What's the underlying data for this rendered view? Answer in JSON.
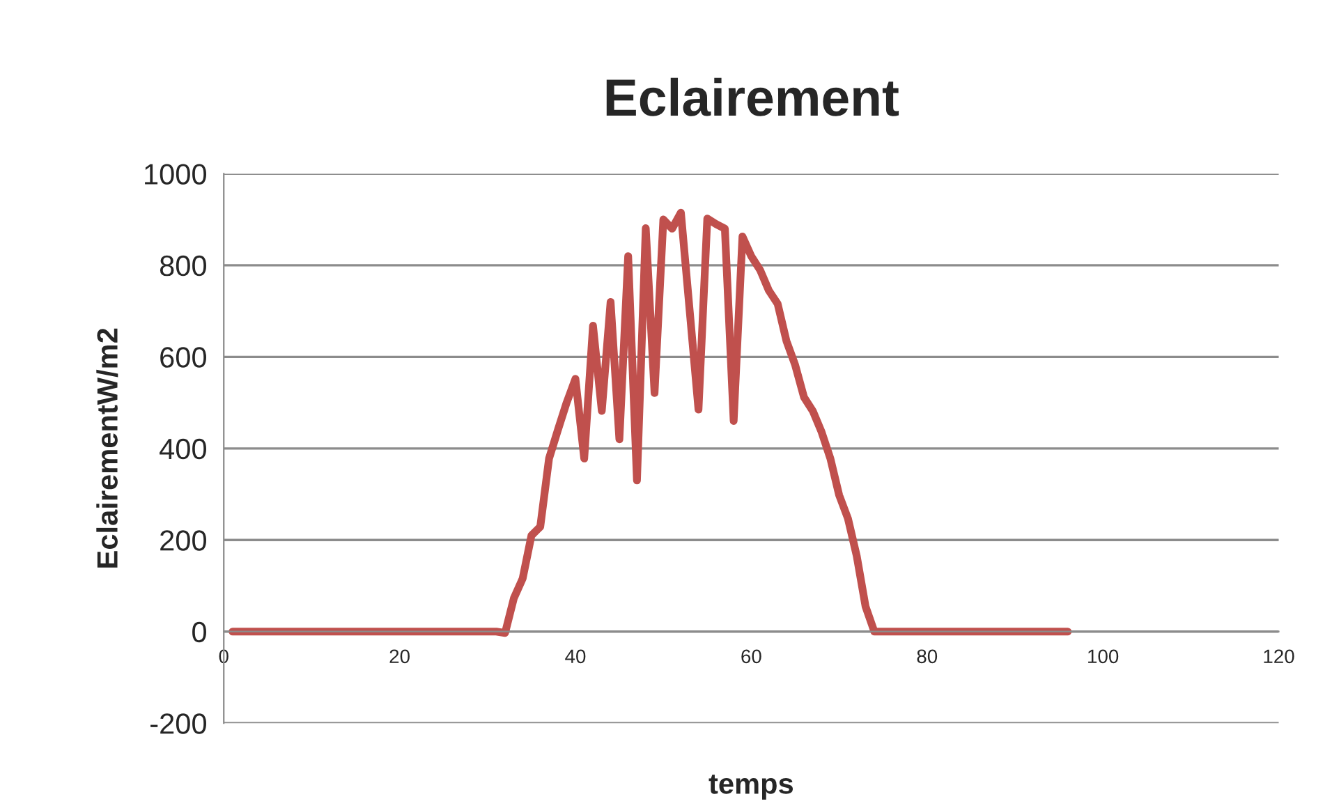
{
  "chart_data": {
    "type": "line",
    "title": "Eclairement",
    "xlabel": "temps",
    "ylabel": "EclairementW/m2",
    "x": [
      1,
      2,
      3,
      4,
      5,
      6,
      7,
      8,
      9,
      10,
      11,
      12,
      13,
      14,
      15,
      16,
      17,
      18,
      19,
      20,
      21,
      22,
      23,
      24,
      25,
      26,
      27,
      28,
      29,
      30,
      31,
      32,
      33,
      34,
      35,
      36,
      37,
      38,
      39,
      40,
      41,
      42,
      43,
      44,
      45,
      46,
      47,
      48,
      49,
      50,
      51,
      52,
      53,
      54,
      55,
      56,
      57,
      58,
      59,
      60,
      61,
      62,
      63,
      64,
      65,
      66,
      67,
      68,
      69,
      70,
      71,
      72,
      73,
      74,
      75,
      76,
      77,
      78,
      79,
      80,
      81,
      82,
      83,
      84,
      85,
      86,
      87,
      88,
      89,
      90,
      91,
      92,
      93,
      94,
      95,
      96
    ],
    "series": [
      {
        "color": "#c0504d",
        "values": [
          0,
          0,
          0,
          0,
          0,
          0,
          0,
          0,
          0,
          0,
          0,
          0,
          0,
          0,
          0,
          0,
          0,
          0,
          0,
          0,
          0,
          0,
          0,
          0,
          0,
          0,
          0,
          0,
          0,
          0,
          0,
          -3,
          73,
          116,
          210,
          229,
          378,
          440,
          500,
          552,
          378,
          668,
          482,
          720,
          420,
          820,
          330,
          881,
          521,
          900,
          880,
          915,
          700,
          485,
          902,
          890,
          880,
          460,
          863,
          820,
          790,
          745,
          716,
          635,
          582,
          512,
          482,
          436,
          378,
          298,
          247,
          165,
          55,
          0,
          0,
          0,
          0,
          0,
          0,
          0,
          0,
          0,
          0,
          0,
          0,
          0,
          0,
          0,
          0,
          0,
          0,
          0,
          0,
          0,
          0,
          0
        ]
      }
    ],
    "xlim": [
      0,
      120
    ],
    "xticks": [
      0,
      20,
      40,
      60,
      80,
      100,
      120
    ],
    "ylim": [
      -200,
      1000
    ],
    "yticks": [
      -200,
      0,
      200,
      400,
      600,
      800,
      1000
    ],
    "grid": "y",
    "line_style": "solid",
    "marker": "none"
  }
}
